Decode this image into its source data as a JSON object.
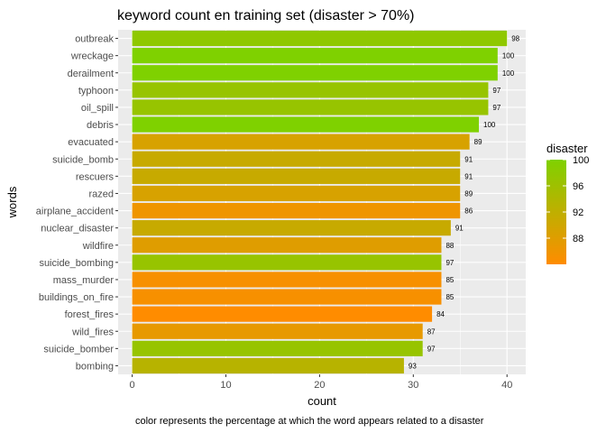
{
  "chart_data": {
    "type": "bar",
    "orientation": "horizontal",
    "title": "keyword count en training set (disaster > 70%)",
    "xlabel": "count",
    "ylabel": "words",
    "caption": "color represents the percentage at which the word appears related to a disaster",
    "xlim": [
      -1.5,
      42
    ],
    "x_ticks": [
      0,
      10,
      20,
      30,
      40
    ],
    "grid": true,
    "legend": {
      "title": "disaster",
      "placement": "right",
      "range": [
        84,
        100
      ],
      "ticks": [
        88,
        92,
        96,
        100
      ],
      "low_color": "#FF8C00",
      "high_color": "#7FD100"
    },
    "categories": [
      "outbreak",
      "wreckage",
      "derailment",
      "typhoon",
      "oil_spill",
      "debris",
      "evacuated",
      "suicide_bomb",
      "rescuers",
      "razed",
      "airplane_accident",
      "nuclear_disaster",
      "wildfire",
      "suicide_bombing",
      "mass_murder",
      "buildings_on_fire",
      "forest_fires",
      "wild_fires",
      "suicide_bomber",
      "bombing"
    ],
    "values": [
      40,
      39,
      39,
      38,
      38,
      37,
      36,
      35,
      35,
      35,
      35,
      34,
      33,
      33,
      33,
      33,
      32,
      31,
      31,
      29
    ],
    "disaster_pct": [
      98,
      100,
      100,
      97,
      97,
      100,
      89,
      91,
      91,
      89,
      86,
      91,
      88,
      97,
      85,
      85,
      84,
      87,
      97,
      93
    ]
  }
}
